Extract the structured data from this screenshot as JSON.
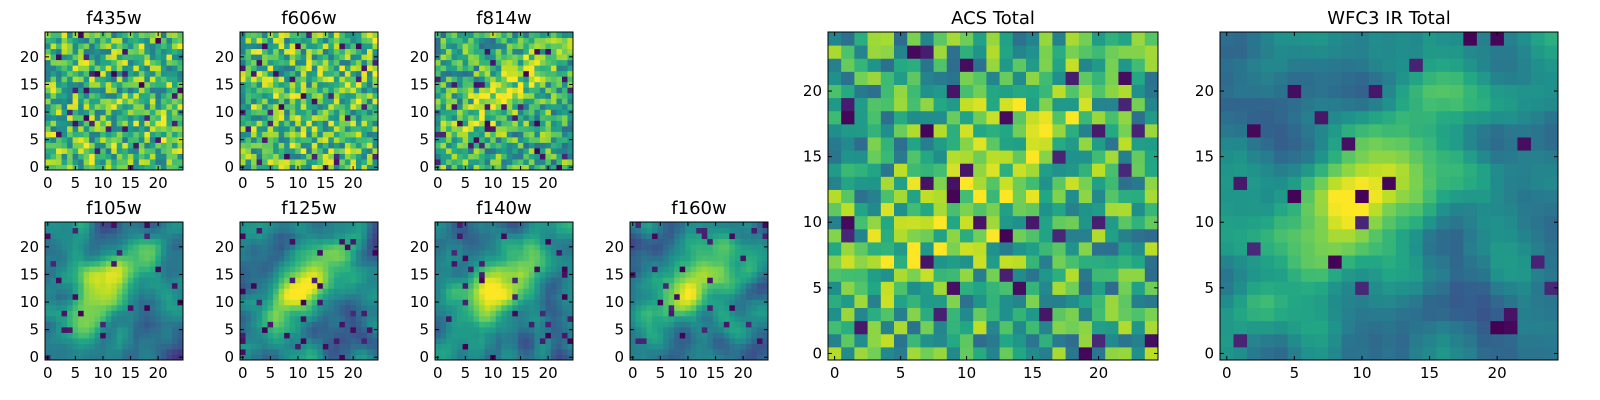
{
  "figure": {
    "width": 1600,
    "height": 400
  },
  "chart_data": [
    {
      "type": "heatmap",
      "title": "f435w",
      "pixels": 25,
      "xticks": [
        "0",
        "5",
        "10",
        "15",
        "20"
      ],
      "yticks": [
        "0",
        "5",
        "10",
        "15",
        "20"
      ],
      "xlim": [
        0,
        24
      ],
      "ylim": [
        0,
        24
      ],
      "colormap": "viridis",
      "pattern": "noise",
      "seed": 11
    },
    {
      "type": "heatmap",
      "title": "f606w",
      "pixels": 25,
      "xticks": [
        "0",
        "5",
        "10",
        "15",
        "20"
      ],
      "yticks": [
        "0",
        "5",
        "10",
        "15",
        "20"
      ],
      "xlim": [
        0,
        24
      ],
      "ylim": [
        0,
        24
      ],
      "colormap": "viridis",
      "pattern": "noise",
      "seed": 23
    },
    {
      "type": "heatmap",
      "title": "f814w",
      "pixels": 25,
      "xticks": [
        "0",
        "5",
        "10",
        "15",
        "20"
      ],
      "yticks": [
        "0",
        "5",
        "10",
        "15",
        "20"
      ],
      "xlim": [
        0,
        24
      ],
      "ylim": [
        0,
        24
      ],
      "colormap": "viridis",
      "pattern": "noise_blob",
      "seed": 37
    },
    {
      "type": "heatmap",
      "title": "f105w",
      "pixels": 25,
      "xticks": [
        "0",
        "5",
        "10",
        "15",
        "20"
      ],
      "yticks": [
        "0",
        "5",
        "10",
        "15",
        "20"
      ],
      "xlim": [
        0,
        24
      ],
      "ylim": [
        0,
        24
      ],
      "colormap": "viridis",
      "pattern": "smooth_blob",
      "seed": 41
    },
    {
      "type": "heatmap",
      "title": "f125w",
      "pixels": 25,
      "xticks": [
        "0",
        "5",
        "10",
        "15",
        "20"
      ],
      "yticks": [
        "0",
        "5",
        "10",
        "15",
        "20"
      ],
      "xlim": [
        0,
        24
      ],
      "ylim": [
        0,
        24
      ],
      "colormap": "viridis",
      "pattern": "smooth_blob",
      "seed": 53
    },
    {
      "type": "heatmap",
      "title": "f140w",
      "pixels": 25,
      "xticks": [
        "0",
        "5",
        "10",
        "15",
        "20"
      ],
      "yticks": [
        "0",
        "5",
        "10",
        "15",
        "20"
      ],
      "xlim": [
        0,
        24
      ],
      "ylim": [
        0,
        24
      ],
      "colormap": "viridis",
      "pattern": "smooth_blob",
      "seed": 67
    },
    {
      "type": "heatmap",
      "title": "f160w",
      "pixels": 25,
      "xticks": [
        "0",
        "5",
        "10",
        "15",
        "20"
      ],
      "yticks": [
        "0",
        "5",
        "10",
        "15",
        "20"
      ],
      "xlim": [
        0,
        24
      ],
      "ylim": [
        0,
        24
      ],
      "colormap": "viridis",
      "pattern": "smooth_blob",
      "seed": 79
    },
    {
      "type": "heatmap",
      "title": "ACS Total",
      "pixels": 25,
      "xticks": [
        "0",
        "5",
        "10",
        "15",
        "20"
      ],
      "yticks": [
        "0",
        "5",
        "10",
        "15",
        "20"
      ],
      "xlim": [
        0,
        24
      ],
      "ylim": [
        0,
        24
      ],
      "colormap": "viridis",
      "pattern": "noise_blob",
      "seed": 89
    },
    {
      "type": "heatmap",
      "title": "WFC3 IR Total",
      "pixels": 25,
      "xticks": [
        "0",
        "5",
        "10",
        "15",
        "20"
      ],
      "yticks": [
        "0",
        "5",
        "10",
        "15",
        "20"
      ],
      "xlim": [
        0,
        24
      ],
      "ylim": [
        0,
        24
      ],
      "colormap": "viridis",
      "pattern": "smooth_blob",
      "seed": 97
    }
  ]
}
